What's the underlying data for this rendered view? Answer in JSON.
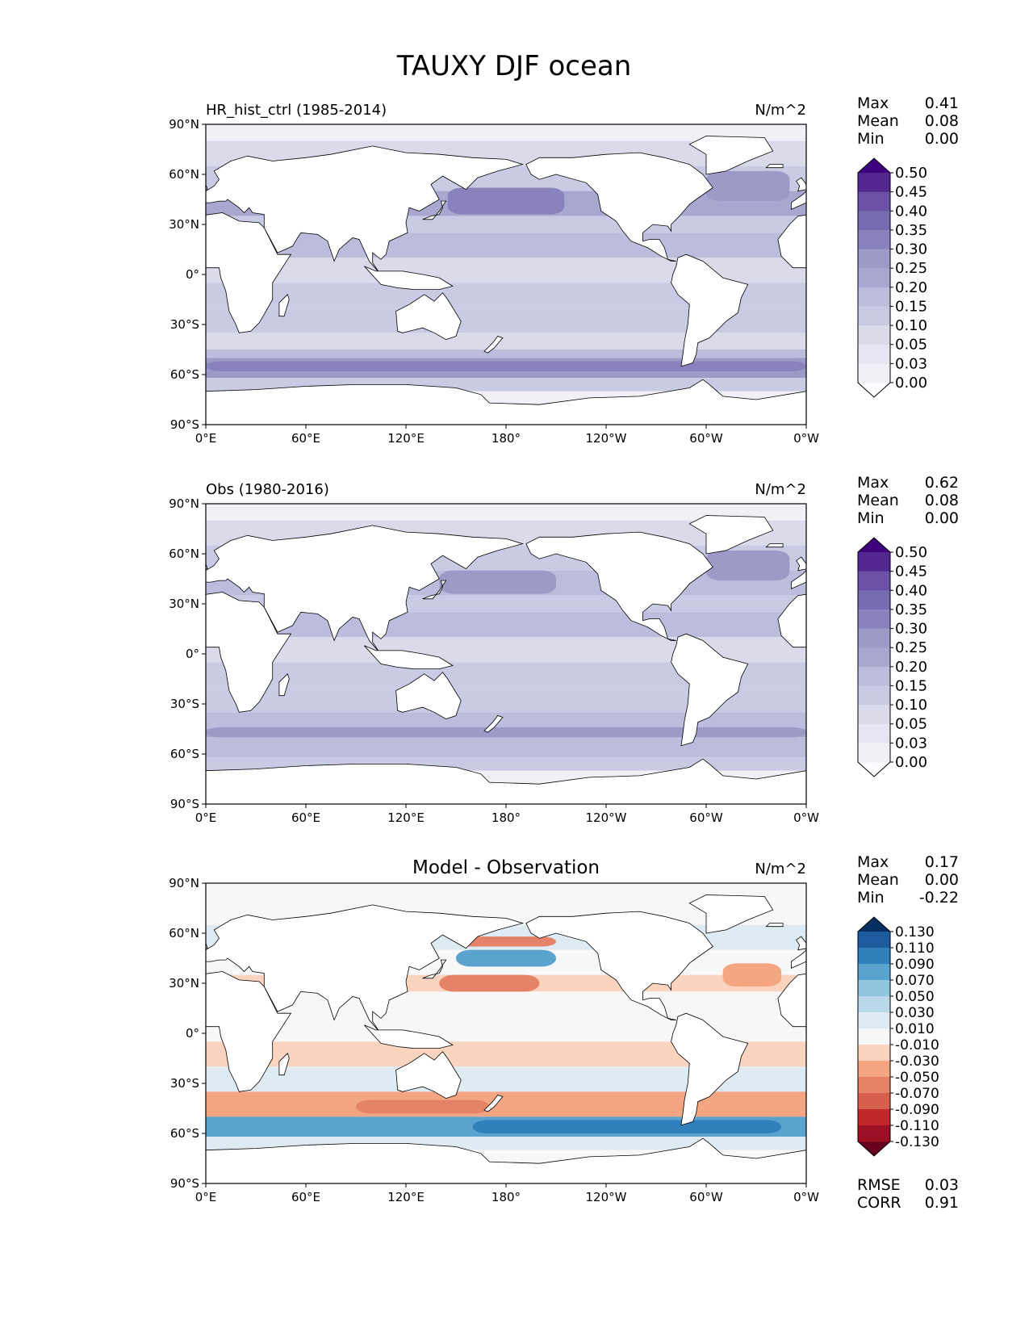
{
  "figure": {
    "title": "TAUXY DJF ocean"
  },
  "axes": {
    "x_ticks": [
      "0°E",
      "60°E",
      "120°E",
      "180°",
      "120°W",
      "60°W",
      "0°W"
    ],
    "y_ticks": [
      "90°N",
      "60°N",
      "30°N",
      "0°",
      "30°S",
      "60°S",
      "90°S"
    ],
    "xlim": [
      0,
      360
    ],
    "ylim": [
      -90,
      90
    ]
  },
  "chart_data": [
    {
      "type": "heatmap",
      "title": "",
      "left_title": "HR_hist_ctrl (1985-2014)",
      "units": "N/m^2",
      "stats": [
        {
          "label": "Max",
          "value": "0.41"
        },
        {
          "label": "Mean",
          "value": "0.08"
        },
        {
          "label": "Min",
          "value": "0.00"
        }
      ],
      "colorbar": {
        "cmap": "Purples",
        "extend": "both",
        "levels": [
          "0.00",
          "0.03",
          "0.05",
          "0.10",
          "0.15",
          "0.20",
          "0.25",
          "0.30",
          "0.35",
          "0.40",
          "0.45",
          "0.50"
        ],
        "colors": [
          "#fcfbfd",
          "#f2f0f7",
          "#e7e5f1",
          "#dadaeb",
          "#c9cae3",
          "#bcbddc",
          "#a9a7d0",
          "#9e9ac8",
          "#8a82bd",
          "#756bb1",
          "#6a51a3",
          "#54278f",
          "#3f007d"
        ]
      },
      "field": {
        "bands": [
          {
            "lat": [
              80,
              90
            ],
            "value": 0.0
          },
          {
            "lat": [
              65,
              80
            ],
            "value": 0.06
          },
          {
            "lat": [
              50,
              65
            ],
            "value": 0.12
          },
          {
            "lat": [
              35,
              50
            ],
            "value": 0.22
          },
          {
            "lat": [
              25,
              35
            ],
            "value": 0.12
          },
          {
            "lat": [
              10,
              25
            ],
            "value": 0.17
          },
          {
            "lat": [
              -5,
              10
            ],
            "value": 0.09
          },
          {
            "lat": [
              -20,
              -5
            ],
            "value": 0.12
          },
          {
            "lat": [
              -35,
              -20
            ],
            "value": 0.11
          },
          {
            "lat": [
              -45,
              -35
            ],
            "value": 0.07
          },
          {
            "lat": [
              -50,
              -45
            ],
            "value": 0.15
          },
          {
            "lat": [
              -62,
              -50
            ],
            "value": 0.26
          },
          {
            "lat": [
              -70,
              -62
            ],
            "value": 0.12
          },
          {
            "lat": [
              -90,
              -70
            ],
            "value": 0.0
          }
        ],
        "patches": [
          {
            "lon": [
              145,
              215
            ],
            "lat": [
              36,
              52
            ],
            "value": 0.3
          },
          {
            "lon": [
              300,
              350
            ],
            "lat": [
              44,
              62
            ],
            "value": 0.29
          },
          {
            "lon": [
              0,
              360
            ],
            "lat": [
              -58,
              -52
            ],
            "value": 0.3
          }
        ]
      }
    },
    {
      "type": "heatmap",
      "title": "",
      "left_title": "Obs (1980-2016)",
      "units": "N/m^2",
      "stats": [
        {
          "label": "Max",
          "value": "0.62"
        },
        {
          "label": "Mean",
          "value": "0.08"
        },
        {
          "label": "Min",
          "value": "0.00"
        }
      ],
      "colorbar": {
        "cmap": "Purples",
        "extend": "both",
        "levels": [
          "0.00",
          "0.03",
          "0.05",
          "0.10",
          "0.15",
          "0.20",
          "0.25",
          "0.30",
          "0.35",
          "0.40",
          "0.45",
          "0.50"
        ],
        "colors": [
          "#fcfbfd",
          "#f2f0f7",
          "#e7e5f1",
          "#dadaeb",
          "#c9cae3",
          "#bcbddc",
          "#a9a7d0",
          "#9e9ac8",
          "#8a82bd",
          "#756bb1",
          "#6a51a3",
          "#54278f",
          "#3f007d"
        ]
      },
      "field": {
        "bands": [
          {
            "lat": [
              80,
              90
            ],
            "value": 0.0
          },
          {
            "lat": [
              65,
              80
            ],
            "value": 0.06
          },
          {
            "lat": [
              50,
              65
            ],
            "value": 0.12
          },
          {
            "lat": [
              35,
              50
            ],
            "value": 0.18
          },
          {
            "lat": [
              25,
              35
            ],
            "value": 0.11
          },
          {
            "lat": [
              10,
              25
            ],
            "value": 0.16
          },
          {
            "lat": [
              -5,
              10
            ],
            "value": 0.09
          },
          {
            "lat": [
              -20,
              -5
            ],
            "value": 0.11
          },
          {
            "lat": [
              -35,
              -20
            ],
            "value": 0.13
          },
          {
            "lat": [
              -45,
              -35
            ],
            "value": 0.18
          },
          {
            "lat": [
              -50,
              -45
            ],
            "value": 0.22
          },
          {
            "lat": [
              -62,
              -50
            ],
            "value": 0.18
          },
          {
            "lat": [
              -70,
              -62
            ],
            "value": 0.1
          },
          {
            "lat": [
              -90,
              -70
            ],
            "value": 0.0
          }
        ],
        "patches": [
          {
            "lon": [
              140,
              210
            ],
            "lat": [
              36,
              50
            ],
            "value": 0.26
          },
          {
            "lon": [
              300,
              350
            ],
            "lat": [
              44,
              62
            ],
            "value": 0.27
          },
          {
            "lon": [
              0,
              360
            ],
            "lat": [
              -50,
              -44
            ],
            "value": 0.27
          }
        ]
      }
    },
    {
      "type": "heatmap",
      "title": "Model - Observation",
      "left_title": "",
      "units": "N/m^2",
      "stats": [
        {
          "label": "Max",
          "value": "0.17"
        },
        {
          "label": "Mean",
          "value": "0.00"
        },
        {
          "label": "Min",
          "value": "-0.22"
        }
      ],
      "extra_stats": [
        {
          "label": "RMSE",
          "value": "0.03"
        },
        {
          "label": "CORR",
          "value": "0.91"
        }
      ],
      "colorbar": {
        "cmap": "RdBu",
        "extend": "both",
        "levels": [
          "-0.130",
          "-0.110",
          "-0.090",
          "-0.070",
          "-0.050",
          "-0.030",
          "-0.010",
          "0.010",
          "0.030",
          "0.050",
          "0.070",
          "0.090",
          "0.110",
          "0.130"
        ],
        "colors": [
          "#67001f",
          "#9b1024",
          "#c1272d",
          "#d6604d",
          "#e58368",
          "#f4a582",
          "#fbd4c0",
          "#f7f7f7",
          "#deebf2",
          "#b9d8ea",
          "#92c5de",
          "#5ba3cf",
          "#3180bc",
          "#1d5a9e",
          "#053061"
        ]
      },
      "field": {
        "bands": [
          {
            "lat": [
              80,
              90
            ],
            "value": 0.0
          },
          {
            "lat": [
              65,
              80
            ],
            "value": -0.005
          },
          {
            "lat": [
              50,
              65
            ],
            "value": 0.02
          },
          {
            "lat": [
              35,
              50
            ],
            "value": 0.0
          },
          {
            "lat": [
              25,
              35
            ],
            "value": -0.02
          },
          {
            "lat": [
              10,
              25
            ],
            "value": 0.0
          },
          {
            "lat": [
              -5,
              10
            ],
            "value": 0.0
          },
          {
            "lat": [
              -20,
              -5
            ],
            "value": -0.02
          },
          {
            "lat": [
              -35,
              -20
            ],
            "value": 0.015
          },
          {
            "lat": [
              -50,
              -35
            ],
            "value": -0.05
          },
          {
            "lat": [
              -62,
              -50
            ],
            "value": 0.07
          },
          {
            "lat": [
              -70,
              -62
            ],
            "value": 0.01
          },
          {
            "lat": [
              -90,
              -70
            ],
            "value": 0.0
          }
        ],
        "patches": [
          {
            "lon": [
              150,
              210
            ],
            "lat": [
              52,
              58
            ],
            "value": -0.06
          },
          {
            "lon": [
              150,
              210
            ],
            "lat": [
              40,
              50
            ],
            "value": 0.08
          },
          {
            "lon": [
              140,
              200
            ],
            "lat": [
              25,
              35
            ],
            "value": -0.06
          },
          {
            "lon": [
              310,
              345
            ],
            "lat": [
              28,
              42
            ],
            "value": -0.05
          },
          {
            "lon": [
              160,
              345
            ],
            "lat": [
              -60,
              -52
            ],
            "value": 0.09
          },
          {
            "lon": [
              90,
              170
            ],
            "lat": [
              -48,
              -40
            ],
            "value": -0.07
          }
        ]
      }
    }
  ]
}
